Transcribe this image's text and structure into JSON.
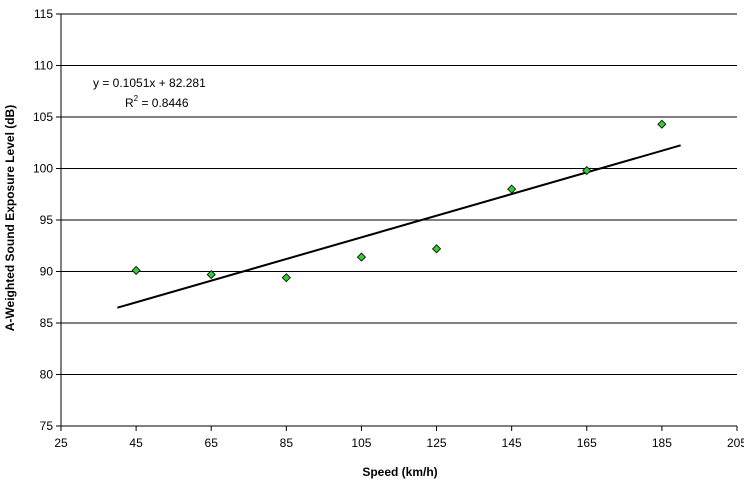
{
  "chart_data": {
    "type": "scatter",
    "xlabel": "Speed (km/h)",
    "ylabel": "A-Weighted Sound Exposure Level (dB)",
    "xlim": [
      25,
      205
    ],
    "ylim": [
      75,
      115
    ],
    "xticks": [
      25,
      45,
      65,
      85,
      105,
      125,
      145,
      165,
      185,
      205
    ],
    "yticks": [
      75,
      80,
      85,
      90,
      95,
      100,
      105,
      110,
      115
    ],
    "grid": "horizontal",
    "series": [
      {
        "marker": "diamond",
        "color": "#33cc33",
        "points": [
          {
            "x": 45,
            "y": 90.1
          },
          {
            "x": 65,
            "y": 89.7
          },
          {
            "x": 85,
            "y": 89.4
          },
          {
            "x": 105,
            "y": 91.4
          },
          {
            "x": 125,
            "y": 92.2
          },
          {
            "x": 145,
            "y": 98.0
          },
          {
            "x": 165,
            "y": 99.8
          },
          {
            "x": 185,
            "y": 104.3
          }
        ]
      }
    ],
    "trendline": {
      "type": "linear",
      "slope": 0.1051,
      "intercept": 82.281,
      "x_range": [
        40,
        190
      ],
      "equation_text": "y = 0.1051x + 82.281",
      "r2_prefix": "R",
      "r2_sup": "2",
      "r2_value": " = 0.8446"
    }
  }
}
